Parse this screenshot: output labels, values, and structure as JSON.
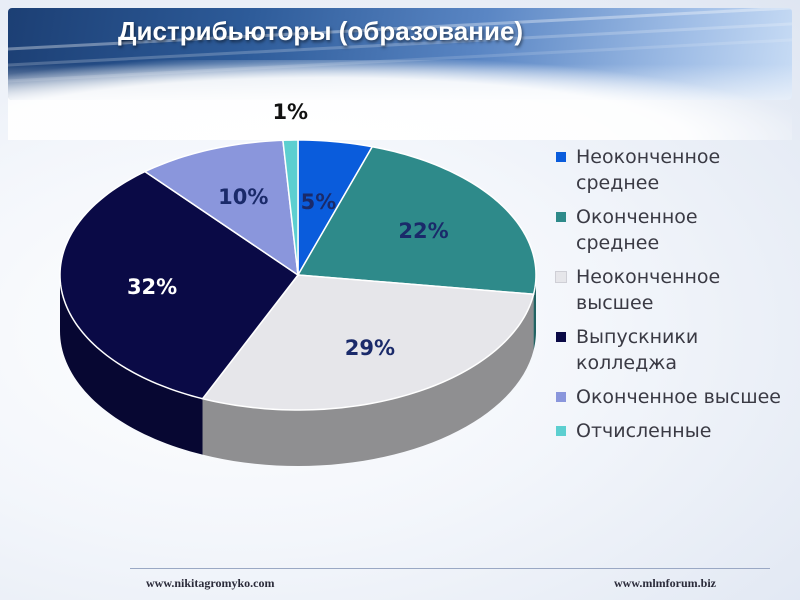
{
  "header": {
    "title": "Дистрибьюторы (образование)"
  },
  "chart_data": {
    "type": "pie",
    "title": "",
    "slices": [
      {
        "label": "Неоконченное среднее",
        "value": 5,
        "display": "5%",
        "color": "#0a5cdc",
        "text_color": "#1a2a6a"
      },
      {
        "label": "Оконченное среднее",
        "value": 22,
        "display": "22%",
        "color": "#2e8a8a",
        "text_color": "#1a2a6a"
      },
      {
        "label": "Неоконченное высшее",
        "value": 29,
        "display": "29%",
        "color": "#e6e6ea",
        "text_color": "#1a2a6a"
      },
      {
        "label": "Выпускники колледжа",
        "value": 32,
        "display": "32%",
        "color": "#0a0a46",
        "text_color": "#ffffff"
      },
      {
        "label": "Оконченное высшее",
        "value": 10,
        "display": "10%",
        "color": "#8a96dc",
        "text_color": "#1a2a6a"
      },
      {
        "label": "Отчисленные",
        "value": 1,
        "display": "1%",
        "color": "#5ccfd0",
        "text_color": "#111111"
      }
    ],
    "legend_position": "right"
  },
  "footer": {
    "left_url": "www.nikitagromyko.com",
    "right_url": "www.mlmforum.biz"
  }
}
